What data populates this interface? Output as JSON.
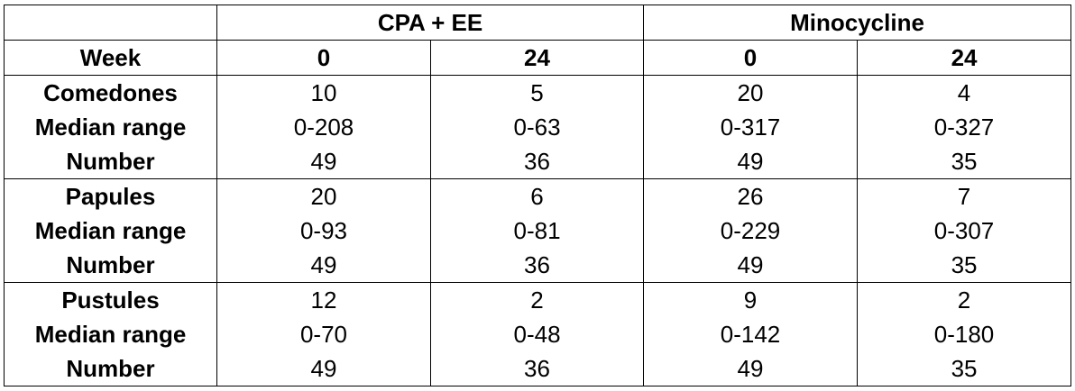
{
  "table": {
    "groups": [
      "CPA + EE",
      "Minocycline"
    ],
    "week_label": "Week",
    "weeks": [
      "0",
      "24",
      "0",
      "24"
    ],
    "sections": [
      {
        "labels": [
          "Comedones",
          "Median range",
          "Number"
        ],
        "cols": [
          [
            "10",
            "0-208",
            "49"
          ],
          [
            "5",
            "0-63",
            "36"
          ],
          [
            "20",
            "0-317",
            "49"
          ],
          [
            "4",
            "0-327",
            "35"
          ]
        ]
      },
      {
        "labels": [
          "Papules",
          "Median range",
          "Number"
        ],
        "cols": [
          [
            "20",
            "0-93",
            "49"
          ],
          [
            "6",
            "0-81",
            "36"
          ],
          [
            "26",
            "0-229",
            "49"
          ],
          [
            "7",
            "0-307",
            "35"
          ]
        ]
      },
      {
        "labels": [
          "Pustules",
          "Median range",
          "Number"
        ],
        "cols": [
          [
            "12",
            "0-70",
            "49"
          ],
          [
            "2",
            "0-48",
            "36"
          ],
          [
            "9",
            "0-142",
            "49"
          ],
          [
            "2",
            "0-180",
            "35"
          ]
        ]
      }
    ]
  }
}
